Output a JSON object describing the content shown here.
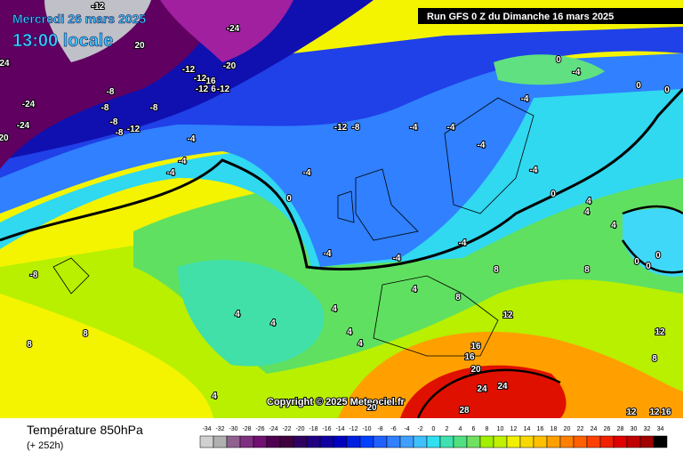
{
  "header": {
    "date": "Mercredi 26 mars 2025",
    "time": "13:00 locale",
    "run": "Run GFS 0 Z du Dimanche 16 mars 2025"
  },
  "footer": {
    "title": "Température 850hPa",
    "subtitle": "(+ 252h)",
    "copyright": "Copyright © 2025 Meteociel.fr"
  },
  "scale": {
    "values": [
      -34,
      -32,
      -30,
      -28,
      -26,
      -24,
      -22,
      -20,
      -18,
      -16,
      -14,
      -12,
      -10,
      -8,
      -6,
      -4,
      -2,
      0,
      2,
      4,
      6,
      8,
      10,
      12,
      14,
      16,
      18,
      20,
      22,
      24,
      26,
      28,
      30,
      32,
      34
    ],
    "colors": [
      "#d0d0d0",
      "#b0b0b0",
      "#906090",
      "#803080",
      "#701070",
      "#500050",
      "#400040",
      "#300060",
      "#200080",
      "#1000a0",
      "#0000c0",
      "#0020e0",
      "#0040ff",
      "#2060ff",
      "#3080ff",
      "#40a0ff",
      "#40c0ff",
      "#30e0f0",
      "#40e0b0",
      "#50e080",
      "#70e060",
      "#a0f000",
      "#c0f000",
      "#f0f000",
      "#f8d800",
      "#ffc000",
      "#ffa000",
      "#ff8000",
      "#ff6000",
      "#ff4000",
      "#f02000",
      "#e00000",
      "#c00000",
      "#a00000",
      "#000000"
    ]
  },
  "map_labels": [
    -24,
    24,
    20,
    -20,
    -12,
    -12,
    16,
    -12,
    6,
    -12,
    -8,
    -8,
    -8,
    -8,
    -8,
    -12,
    -24,
    -24,
    20,
    -12,
    -8,
    -4,
    -4,
    -4,
    -4,
    -4,
    -4,
    0,
    0,
    0,
    -4,
    -4,
    -4,
    -4,
    0,
    -4,
    -4,
    -4,
    0,
    4,
    4,
    4,
    8,
    8,
    4,
    8,
    4,
    4,
    4,
    4,
    4,
    8,
    8,
    4,
    12,
    16,
    16,
    20,
    24,
    24,
    28,
    20,
    12,
    12,
    16,
    8,
    12,
    0,
    0,
    0,
    -8,
    -12
  ]
}
